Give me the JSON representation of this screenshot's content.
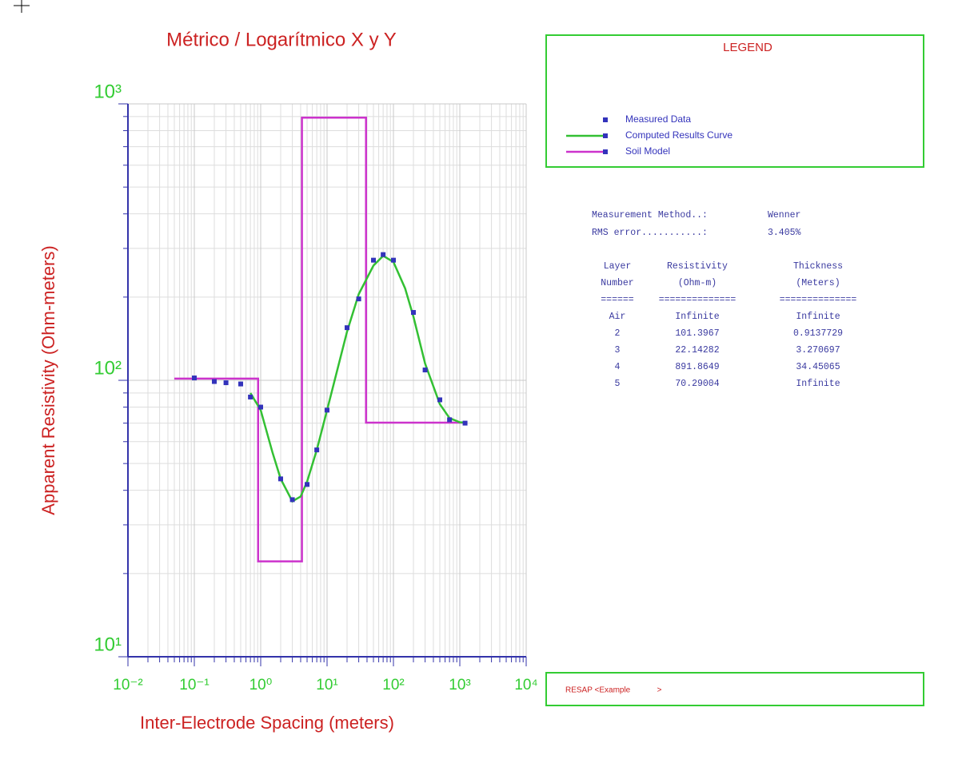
{
  "chart_data": {
    "type": "line",
    "title": "Métrico / Logarítmico X y Y",
    "xlabel": "Inter-Electrode Spacing (meters)",
    "ylabel": "Apparent Resistivity (Ohm-meters)",
    "xscale": "log",
    "yscale": "log",
    "xlim": [
      0.01,
      10000
    ],
    "ylim": [
      10,
      1000
    ],
    "xticks": [
      {
        "value": 0.01,
        "label": "10⁻²"
      },
      {
        "value": 0.1,
        "label": "10⁻¹"
      },
      {
        "value": 1,
        "label": "10⁰"
      },
      {
        "value": 10,
        "label": "10¹"
      },
      {
        "value": 100,
        "label": "10²"
      },
      {
        "value": 1000,
        "label": "10³"
      },
      {
        "value": 10000,
        "label": "10⁴"
      }
    ],
    "yticks": [
      {
        "value": 10,
        "label": "10¹"
      },
      {
        "value": 100,
        "label": "10²"
      },
      {
        "value": 1000,
        "label": "10³"
      }
    ],
    "grid": true,
    "minor_grid": true,
    "legend_title": "LEGEND",
    "series": [
      {
        "name": "Measured Data",
        "color": "#3333bb",
        "mode": "markers",
        "x": [
          0.1,
          0.2,
          0.3,
          0.5,
          0.7,
          1,
          2,
          3,
          5,
          7,
          10,
          20,
          30,
          50,
          70,
          100,
          200,
          300,
          500,
          700,
          1200
        ],
        "values": [
          102,
          99,
          98,
          97,
          87,
          80,
          44,
          37,
          42,
          56,
          78,
          155,
          197,
          272,
          285,
          272,
          176,
          109,
          85,
          72,
          70
        ]
      },
      {
        "name": "Computed Results Curve",
        "color": "#33c033",
        "mode": "lines",
        "x": [
          0.7,
          1,
          1.5,
          2,
          3,
          4,
          5,
          7,
          10,
          20,
          30,
          50,
          70,
          100,
          150,
          200,
          300,
          500,
          700,
          1000,
          1200
        ],
        "values": [
          90,
          78,
          55,
          44,
          36.5,
          38,
          43,
          56,
          78,
          150,
          205,
          260,
          282,
          268,
          215,
          170,
          115,
          82,
          73,
          70.5,
          70.3
        ]
      },
      {
        "name": "Soil Model",
        "color": "#cc33cc",
        "mode": "lines",
        "x": [
          0.05,
          0.9138,
          0.9138,
          4.184,
          4.184,
          38.63,
          38.63,
          1200
        ],
        "values": [
          101.4,
          101.4,
          22.14,
          22.14,
          891.9,
          891.9,
          70.29,
          70.29
        ]
      }
    ]
  },
  "results": {
    "method_label": "Measurement Method..:",
    "method": "Wenner",
    "rms_label": "RMS error...........:",
    "rms": "3.405%",
    "headers": [
      [
        "Layer",
        "Number",
        "======"
      ],
      [
        "Resistivity",
        "(Ohm-m)",
        "=============="
      ],
      [
        "Thickness",
        "(Meters)",
        "=============="
      ]
    ],
    "rows": [
      [
        "Air",
        "Infinite",
        "Infinite"
      ],
      [
        2,
        101.3967,
        0.9137729
      ],
      [
        3,
        22.14282,
        3.270697
      ],
      [
        4,
        891.8649,
        34.45065
      ],
      [
        5,
        70.29004,
        "Infinite"
      ]
    ]
  },
  "footer": "RESAP <Example            >"
}
